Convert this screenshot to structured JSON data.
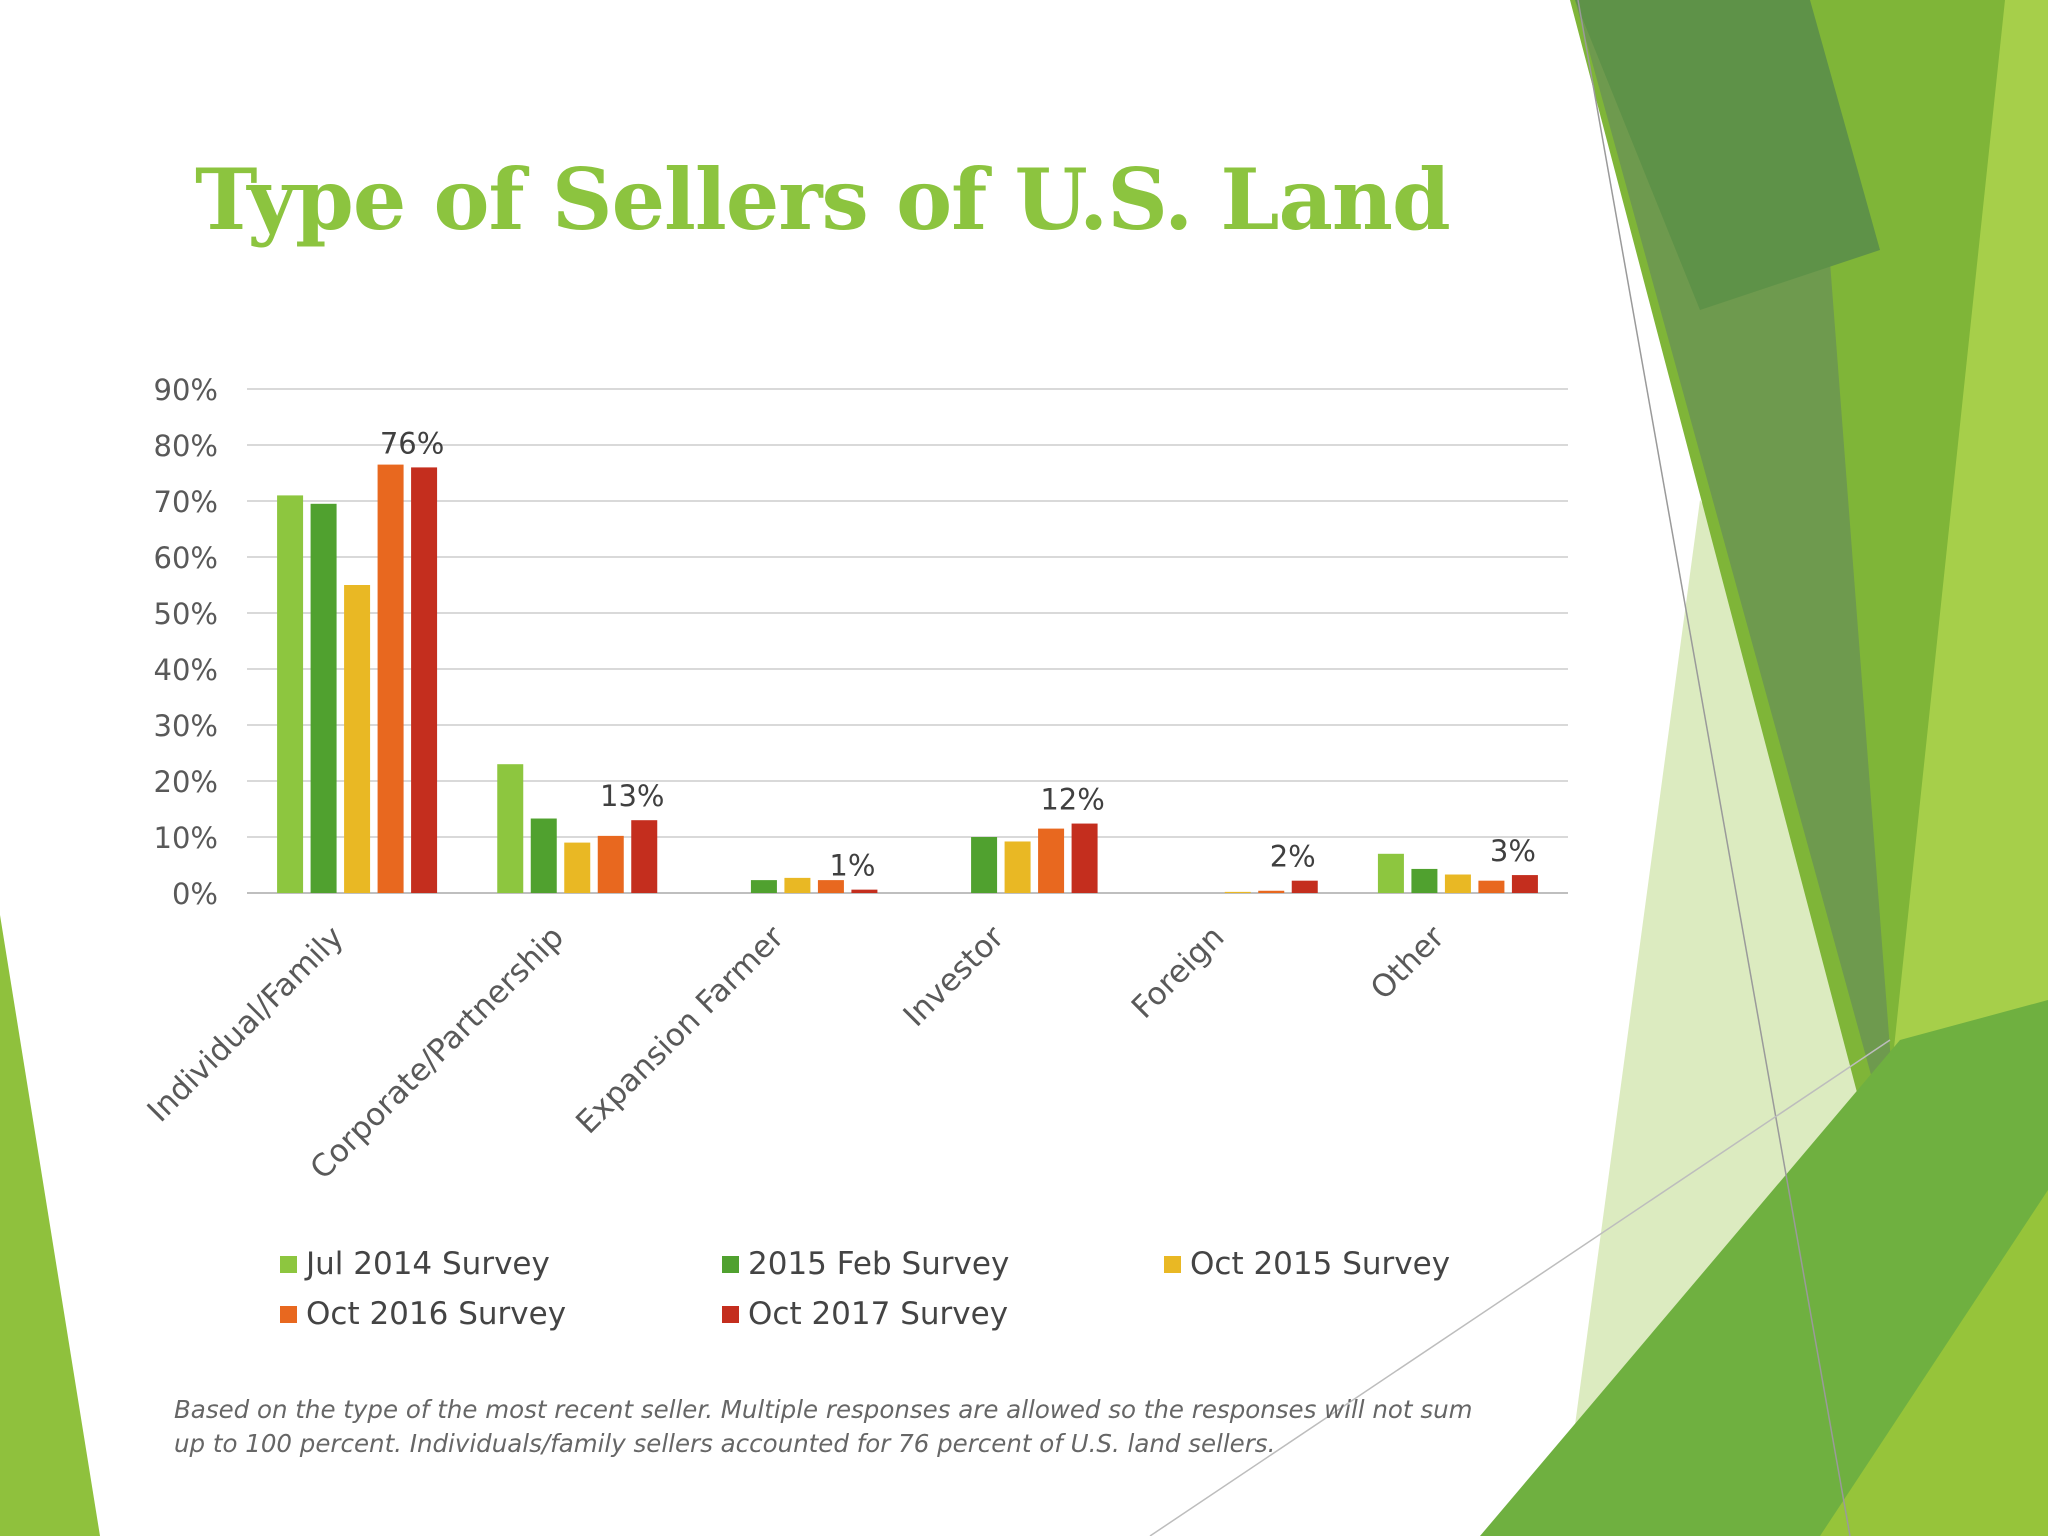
{
  "slide": {
    "title": "Type of Sellers of U.S. Land",
    "footnote": "Based on the type of the most recent seller. Multiple responses are allowed so the responses will not sum up to 100 percent. Individuals/family sellers accounted for 76 percent of U.S. land sellers."
  },
  "colors": {
    "title": "#8cc43f",
    "decoration_light": "#a6cf4a",
    "decoration_mid": "#7fb538",
    "decoration_dark": "#5a9442"
  },
  "chart_data": {
    "type": "bar",
    "title": "",
    "xlabel": "",
    "ylabel": "",
    "ylim": [
      0,
      90
    ],
    "y_ticks": [
      "0%",
      "10%",
      "20%",
      "30%",
      "40%",
      "50%",
      "60%",
      "70%",
      "80%",
      "90%"
    ],
    "grid": true,
    "legend_position": "bottom",
    "categories": [
      "Individual/Family",
      "Corporate/Partnership",
      "Expansion Farmer",
      "Investor",
      "Foreign",
      "Other"
    ],
    "series": [
      {
        "name": "Jul 2014 Survey",
        "color": "#8dc63f",
        "values": [
          71,
          23,
          0,
          0,
          0,
          7
        ]
      },
      {
        "name": "2015 Feb Survey",
        "color": "#50a12f",
        "values": [
          69.5,
          13.3,
          2.3,
          10,
          0,
          4.3
        ]
      },
      {
        "name": "Oct 2015 Survey",
        "color": "#e9b824",
        "values": [
          55,
          9,
          2.7,
          9.2,
          0.2,
          3.3
        ]
      },
      {
        "name": "Oct 2016 Survey",
        "color": "#e8681f",
        "values": [
          76.5,
          10.2,
          2.3,
          11.5,
          0.4,
          2.2
        ]
      },
      {
        "name": "Oct 2017 Survey",
        "color": "#c42e1e",
        "values": [
          76,
          13,
          0.6,
          12.4,
          2.2,
          3.2
        ]
      }
    ],
    "data_labels": [
      {
        "category": "Individual/Family",
        "series": "Oct 2017 Survey",
        "text": "76%"
      },
      {
        "category": "Corporate/Partnership",
        "series": "Oct 2017 Survey",
        "text": "13%"
      },
      {
        "category": "Expansion Farmer",
        "series": "Oct 2017 Survey",
        "text": "1%"
      },
      {
        "category": "Investor",
        "series": "Oct 2017 Survey",
        "text": "12%"
      },
      {
        "category": "Foreign",
        "series": "Oct 2017 Survey",
        "text": "2%"
      },
      {
        "category": "Other",
        "series": "Oct 2017 Survey",
        "text": "3%"
      }
    ]
  }
}
